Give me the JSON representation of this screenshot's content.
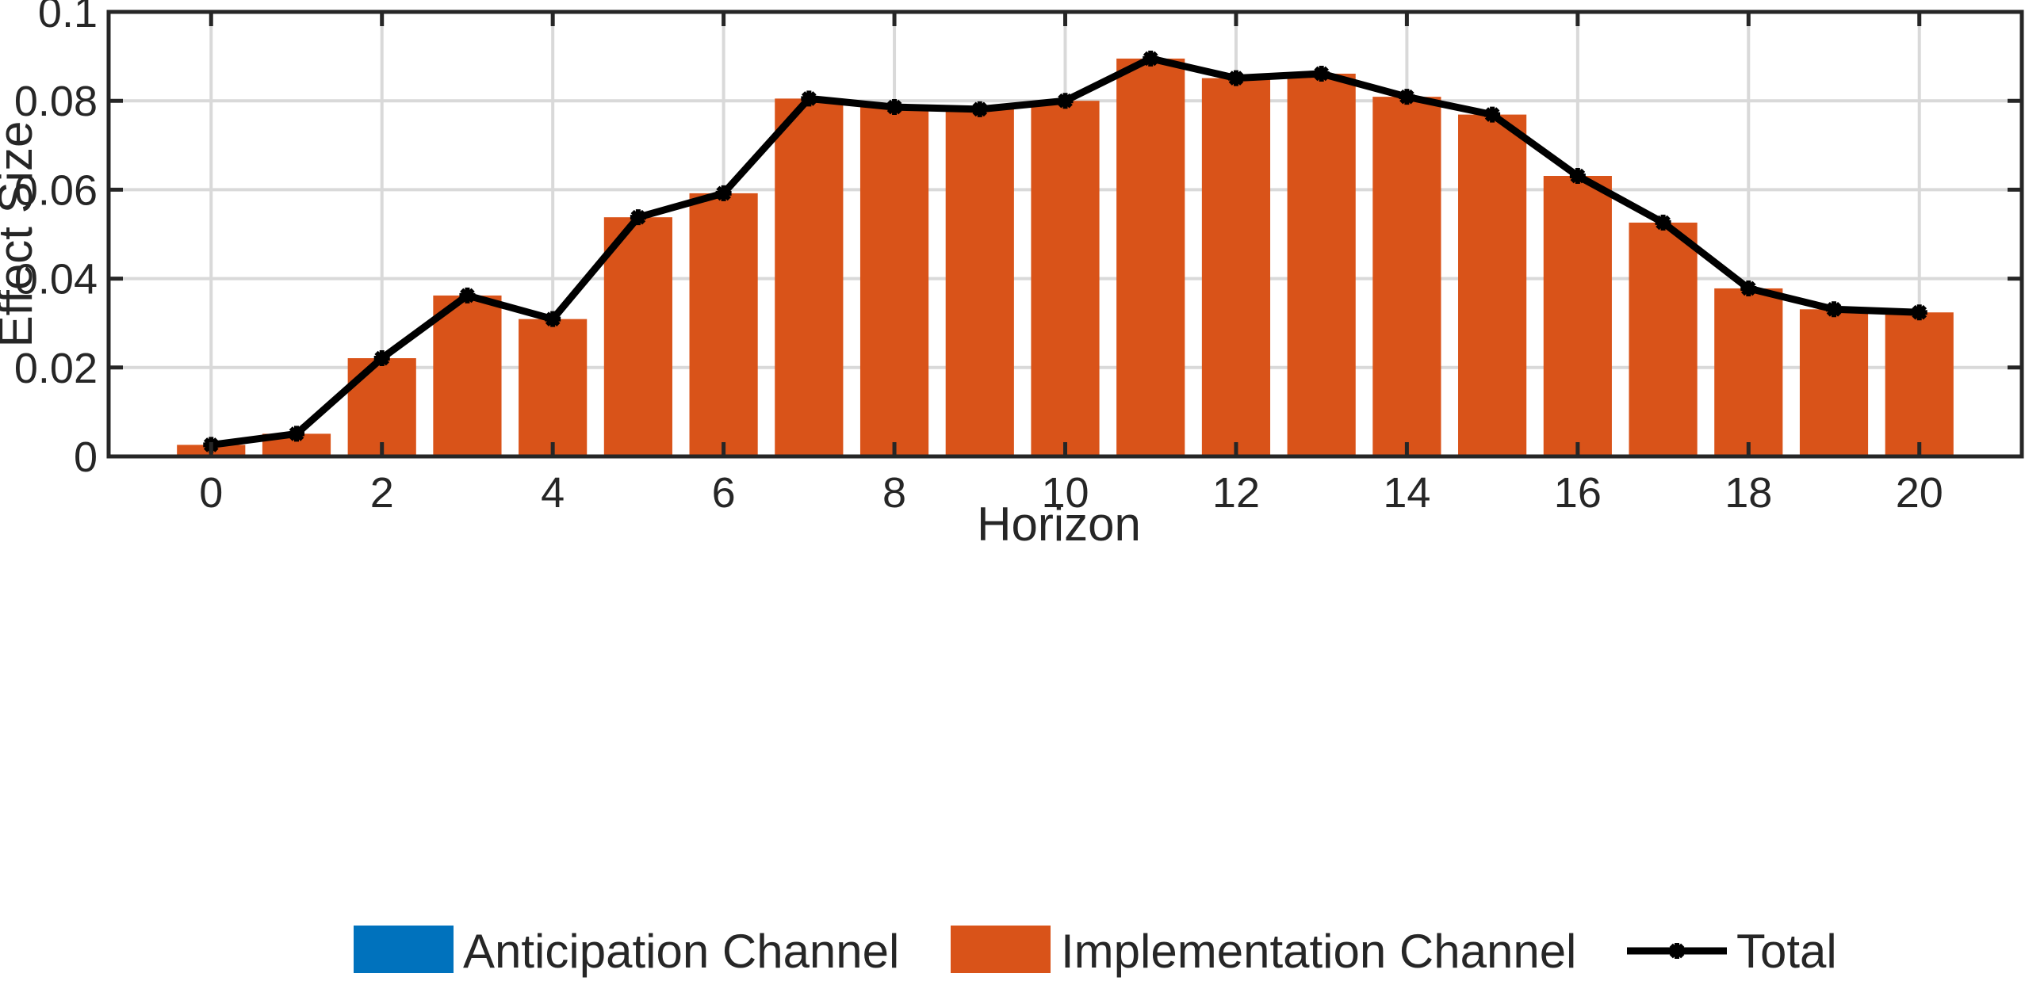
{
  "chart_data": {
    "type": "bar",
    "xlabel": "Horizon",
    "ylabel": "Effect Size",
    "ylim": [
      0,
      0.1
    ],
    "xlim": [
      -1.2,
      21.2
    ],
    "yticks": [
      0,
      0.02,
      0.04,
      0.06,
      0.08,
      0.1
    ],
    "ytick_labels": [
      "0",
      "0.02",
      "0.04",
      "0.06",
      "0.08",
      "0.1"
    ],
    "xticks": [
      0,
      2,
      4,
      6,
      8,
      10,
      12,
      14,
      16,
      18,
      20
    ],
    "xtick_labels": [
      "0",
      "2",
      "4",
      "6",
      "8",
      "10",
      "12",
      "14",
      "16",
      "18",
      "20"
    ],
    "grid": true,
    "legend_position": "bottom",
    "x": [
      0,
      1,
      2,
      3,
      4,
      5,
      6,
      7,
      8,
      9,
      10,
      11,
      12,
      13,
      14,
      15,
      16,
      17,
      18,
      19,
      20
    ],
    "series": [
      {
        "name": "Anticipation Channel",
        "kind": "bar",
        "color": "#0072BD",
        "values": [
          0,
          0,
          0,
          0,
          0,
          0,
          0,
          0,
          0,
          0,
          0,
          0,
          0,
          0,
          0,
          0,
          0,
          0,
          0,
          0,
          0
        ]
      },
      {
        "name": "Implementation Channel",
        "kind": "bar",
        "color": "#D95319",
        "values": [
          0.0026,
          0.0051,
          0.0221,
          0.0362,
          0.0309,
          0.0538,
          0.0592,
          0.0805,
          0.0786,
          0.0781,
          0.08,
          0.0895,
          0.0851,
          0.0861,
          0.0809,
          0.0769,
          0.0631,
          0.0526,
          0.0378,
          0.0331,
          0.0324
        ]
      },
      {
        "name": "Total",
        "kind": "line",
        "color": "#000000",
        "marker": "star",
        "values": [
          0.0026,
          0.0051,
          0.0221,
          0.0362,
          0.0309,
          0.0538,
          0.0592,
          0.0805,
          0.0786,
          0.0781,
          0.08,
          0.0895,
          0.0851,
          0.0861,
          0.0809,
          0.0769,
          0.0631,
          0.0526,
          0.0378,
          0.0331,
          0.0324
        ]
      }
    ]
  }
}
